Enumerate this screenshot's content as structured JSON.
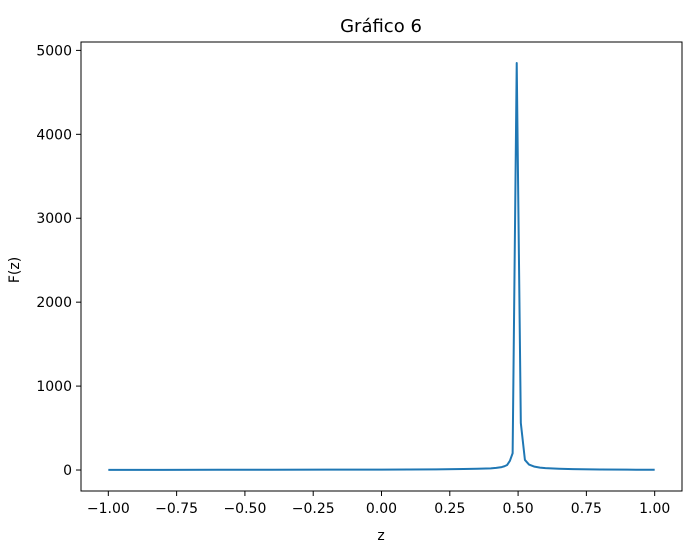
{
  "chart_data": {
    "type": "line",
    "title": "Gráfico 6",
    "xlabel": "z",
    "ylabel": "F(z)",
    "xlim": [
      -1.1,
      1.1
    ],
    "ylim": [
      -250,
      5100
    ],
    "xticks": [
      -1.0,
      -0.75,
      -0.5,
      -0.25,
      0.0,
      0.25,
      0.5,
      0.75,
      1.0
    ],
    "xtick_labels": [
      "−1.00",
      "−0.75",
      "−0.50",
      "−0.25",
      "0.00",
      "0.25",
      "0.50",
      "0.75",
      "1.00"
    ],
    "yticks": [
      0,
      1000,
      2000,
      3000,
      4000,
      5000
    ],
    "ytick_labels": [
      "0",
      "1000",
      "2000",
      "3000",
      "4000",
      "5000"
    ],
    "grid": false,
    "series": [
      {
        "color": "#1f77b4",
        "x": [
          -1.0,
          -0.8,
          -0.6,
          -0.4,
          -0.2,
          0.0,
          0.2,
          0.3,
          0.35,
          0.4,
          0.42,
          0.44,
          0.45,
          0.46,
          0.47,
          0.48,
          0.495,
          0.51,
          0.525,
          0.54,
          0.56,
          0.58,
          0.6,
          0.65,
          0.7,
          0.8,
          0.9,
          1.0
        ],
        "y": [
          2,
          2,
          3,
          3,
          4,
          5,
          8,
          12,
          15,
          20,
          25,
          35,
          45,
          60,
          110,
          200,
          4850,
          560,
          120,
          65,
          40,
          28,
          22,
          15,
          10,
          6,
          4,
          3
        ]
      }
    ]
  }
}
